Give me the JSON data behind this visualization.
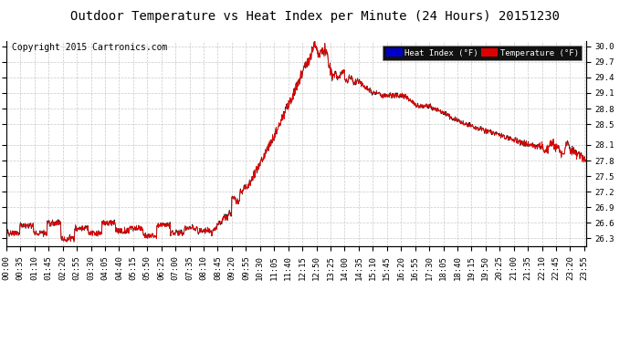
{
  "title": "Outdoor Temperature vs Heat Index per Minute (24 Hours) 20151230",
  "copyright": "Copyright 2015 Cartronics.com",
  "background_color": "#ffffff",
  "grid_color": "#bbbbbb",
  "line_color_temp": "#dd0000",
  "line_color_heat": "#111111",
  "legend_heat_bg": "#0000cc",
  "legend_temp_bg": "#dd0000",
  "legend_heat_text": "Heat Index (°F)",
  "legend_temp_text": "Temperature (°F)",
  "title_fontsize": 10,
  "tick_fontsize": 6.5,
  "copyright_fontsize": 7,
  "yticks": [
    26.3,
    26.6,
    26.9,
    27.2,
    27.5,
    27.8,
    28.1,
    28.5,
    28.8,
    29.1,
    29.4,
    29.7,
    30.0
  ],
  "xtick_step_minutes": 35
}
